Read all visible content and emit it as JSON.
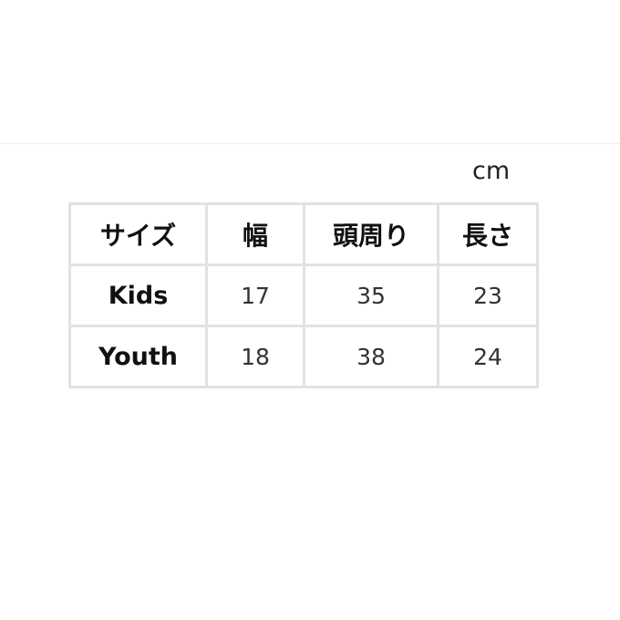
{
  "unit": "cm",
  "table": {
    "headers": [
      "サイズ",
      "幅",
      "頭周り",
      "長さ"
    ],
    "rows": [
      [
        "Kids",
        "17",
        "35",
        "23"
      ],
      [
        "Youth",
        "18",
        "38",
        "24"
      ]
    ]
  }
}
